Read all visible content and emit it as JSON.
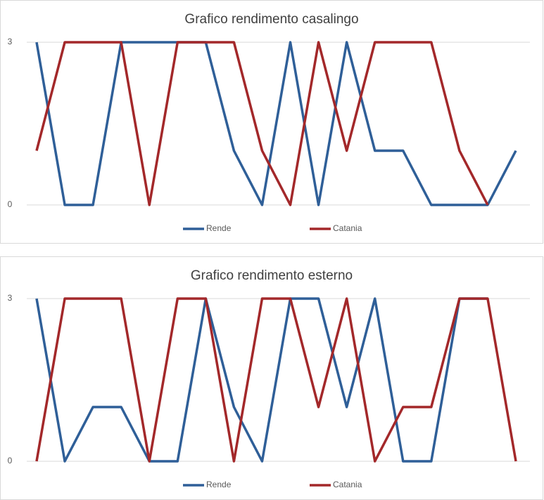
{
  "chart_data": [
    {
      "type": "line",
      "title": "Grafico rendimento casalingo",
      "categories": [
        null,
        null,
        null,
        null,
        null,
        null,
        null,
        null,
        null,
        null,
        null,
        null,
        null,
        null,
        null,
        null,
        null,
        null
      ],
      "series": [
        {
          "name": "Rende",
          "color": "#2f5f98",
          "values": [
            3,
            0,
            0,
            3,
            3,
            3,
            3,
            1,
            0,
            3,
            0,
            3,
            1,
            1,
            0,
            0,
            0,
            1
          ]
        },
        {
          "name": "Catania",
          "color": "#a3282a",
          "values": [
            1,
            3,
            3,
            3,
            0,
            3,
            3,
            3,
            1,
            0,
            3,
            1,
            3,
            3,
            3,
            1,
            0,
            null
          ]
        }
      ],
      "ylim": [
        0,
        3
      ],
      "yticks": [
        0,
        3
      ],
      "grid": true,
      "legend": "bottom"
    },
    {
      "type": "line",
      "title": "Grafico rendimento esterno",
      "categories": [
        null,
        null,
        null,
        null,
        null,
        null,
        null,
        null,
        null,
        null,
        null,
        null,
        null,
        null,
        null,
        null,
        null,
        null
      ],
      "series": [
        {
          "name": "Rende",
          "color": "#2f5f98",
          "values": [
            3,
            0,
            1,
            1,
            0,
            0,
            3,
            1,
            0,
            3,
            3,
            1,
            3,
            0,
            0,
            3,
            3,
            null
          ]
        },
        {
          "name": "Catania",
          "color": "#a3282a",
          "values": [
            0,
            3,
            3,
            3,
            0,
            3,
            3,
            0,
            3,
            3,
            1,
            3,
            0,
            1,
            1,
            3,
            3,
            0
          ]
        }
      ],
      "ylim": [
        0,
        3
      ],
      "yticks": [
        0,
        3
      ],
      "grid": true,
      "legend": "bottom"
    }
  ]
}
